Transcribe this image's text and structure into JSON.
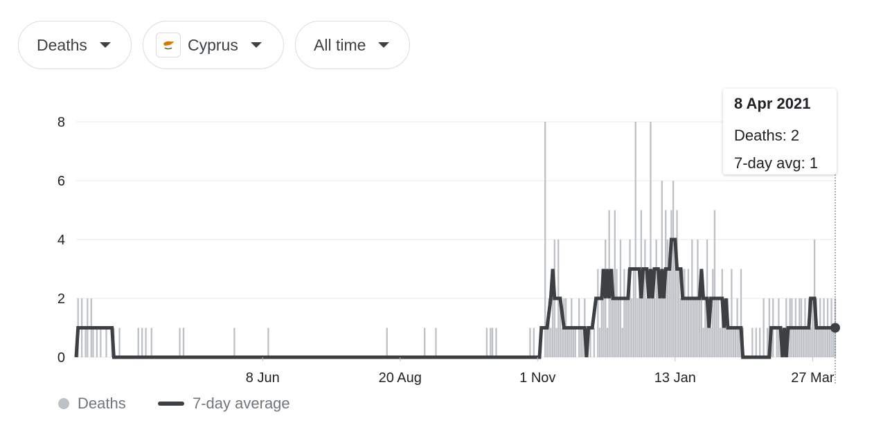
{
  "filters": {
    "metric": "Deaths",
    "country": "Cyprus",
    "range": "All time"
  },
  "tooltip": {
    "date": "8 Apr 2021",
    "deaths": "Deaths: 2",
    "avg": "7-day avg: 1"
  },
  "legend": {
    "deaths": "Deaths",
    "avg": "7-day average"
  },
  "colors": {
    "bars": "#bdc1c6",
    "avg_line": "#3c4043",
    "grid": "#e8eaed",
    "flag_orange": "#d57800",
    "flag_green": "#4e5b31"
  },
  "chart_data": {
    "type": "bar",
    "start_date": "2020-03-01",
    "x_ticks": [
      {
        "label": "8 Jun",
        "date": "2020-06-08"
      },
      {
        "label": "20 Aug",
        "date": "2020-08-20"
      },
      {
        "label": "1 Nov",
        "date": "2020-11-01"
      },
      {
        "label": "13 Jan",
        "date": "2021-01-13"
      },
      {
        "label": "27 Mar",
        "date": "2021-03-27"
      }
    ],
    "y_ticks": [
      0,
      2,
      4,
      6,
      8
    ],
    "ylim": [
      0,
      8
    ],
    "grid": true,
    "highlight": {
      "date": "2021-04-08",
      "deaths": 2,
      "avg": 1
    },
    "series": [
      {
        "name": "Deaths",
        "type": "bar",
        "points": [
          [
            "2020-03-02",
            2
          ],
          [
            "2020-03-04",
            2
          ],
          [
            "2020-03-06",
            1
          ],
          [
            "2020-03-07",
            2
          ],
          [
            "2020-03-09",
            2
          ],
          [
            "2020-03-10",
            1
          ],
          [
            "2020-03-12",
            1
          ],
          [
            "2020-03-14",
            1
          ],
          [
            "2020-03-17",
            1
          ],
          [
            "2020-03-20",
            1
          ],
          [
            "2020-03-21",
            1
          ],
          [
            "2020-03-24",
            1
          ],
          [
            "2020-04-03",
            1
          ],
          [
            "2020-04-05",
            1
          ],
          [
            "2020-04-07",
            1
          ],
          [
            "2020-04-10",
            1
          ],
          [
            "2020-04-25",
            1
          ],
          [
            "2020-04-27",
            1
          ],
          [
            "2020-05-24",
            1
          ],
          [
            "2020-06-11",
            1
          ],
          [
            "2020-08-13",
            1
          ],
          [
            "2020-09-02",
            1
          ],
          [
            "2020-09-08",
            1
          ],
          [
            "2020-10-05",
            1
          ],
          [
            "2020-10-07",
            1
          ],
          [
            "2020-10-08",
            1
          ],
          [
            "2020-10-10",
            1
          ],
          [
            "2020-10-28",
            1
          ],
          [
            "2020-10-30",
            1
          ],
          [
            "2020-11-05",
            8
          ],
          [
            "2020-11-06",
            1
          ],
          [
            "2020-11-07",
            2
          ],
          [
            "2020-11-08",
            1
          ],
          [
            "2020-11-09",
            2
          ],
          [
            "2020-11-10",
            4
          ],
          [
            "2020-11-11",
            1
          ],
          [
            "2020-11-12",
            4
          ],
          [
            "2020-11-13",
            2
          ],
          [
            "2020-11-14",
            1
          ],
          [
            "2020-11-15",
            2
          ],
          [
            "2020-11-16",
            2
          ],
          [
            "2020-11-17",
            1
          ],
          [
            "2020-11-18",
            1
          ],
          [
            "2020-11-19",
            2
          ],
          [
            "2020-11-20",
            1
          ],
          [
            "2020-11-21",
            1
          ],
          [
            "2020-11-23",
            2
          ],
          [
            "2020-11-24",
            1
          ],
          [
            "2020-11-25",
            1
          ],
          [
            "2020-11-26",
            2
          ],
          [
            "2020-11-27",
            1
          ],
          [
            "2020-11-29",
            1
          ],
          [
            "2020-12-01",
            1
          ],
          [
            "2020-12-03",
            3
          ],
          [
            "2020-12-04",
            1
          ],
          [
            "2020-12-05",
            3
          ],
          [
            "2020-12-06",
            2
          ],
          [
            "2020-12-07",
            4
          ],
          [
            "2020-12-08",
            1
          ],
          [
            "2020-12-09",
            5
          ],
          [
            "2020-12-10",
            2
          ],
          [
            "2020-12-11",
            3
          ],
          [
            "2020-12-12",
            5
          ],
          [
            "2020-12-13",
            3
          ],
          [
            "2020-12-14",
            2
          ],
          [
            "2020-12-15",
            4
          ],
          [
            "2020-12-16",
            1
          ],
          [
            "2020-12-17",
            3
          ],
          [
            "2020-12-18",
            2
          ],
          [
            "2020-12-19",
            3
          ],
          [
            "2020-12-20",
            4
          ],
          [
            "2020-12-21",
            2
          ],
          [
            "2020-12-22",
            3
          ],
          [
            "2020-12-23",
            8
          ],
          [
            "2020-12-24",
            2
          ],
          [
            "2020-12-25",
            3
          ],
          [
            "2020-12-26",
            5
          ],
          [
            "2020-12-27",
            3
          ],
          [
            "2020-12-28",
            4
          ],
          [
            "2020-12-29",
            2
          ],
          [
            "2020-12-30",
            3
          ],
          [
            "2020-12-31",
            8
          ],
          [
            "2021-01-01",
            3
          ],
          [
            "2021-01-02",
            2
          ],
          [
            "2021-01-03",
            4
          ],
          [
            "2021-01-04",
            3
          ],
          [
            "2021-01-05",
            2
          ],
          [
            "2021-01-06",
            6
          ],
          [
            "2021-01-07",
            3
          ],
          [
            "2021-01-08",
            5
          ],
          [
            "2021-01-09",
            4
          ],
          [
            "2021-01-10",
            3
          ],
          [
            "2021-01-11",
            5
          ],
          [
            "2021-01-12",
            6
          ],
          [
            "2021-01-13",
            4
          ],
          [
            "2021-01-14",
            5
          ],
          [
            "2021-01-15",
            3
          ],
          [
            "2021-01-16",
            2
          ],
          [
            "2021-01-17",
            3
          ],
          [
            "2021-01-18",
            3
          ],
          [
            "2021-01-19",
            2
          ],
          [
            "2021-01-20",
            3
          ],
          [
            "2021-01-21",
            2
          ],
          [
            "2021-01-22",
            4
          ],
          [
            "2021-01-23",
            2
          ],
          [
            "2021-01-24",
            2
          ],
          [
            "2021-01-25",
            4
          ],
          [
            "2021-01-26",
            2
          ],
          [
            "2021-01-27",
            3
          ],
          [
            "2021-01-28",
            1
          ],
          [
            "2021-01-29",
            2
          ],
          [
            "2021-01-30",
            4
          ],
          [
            "2021-01-31",
            2
          ],
          [
            "2021-02-01",
            1
          ],
          [
            "2021-02-02",
            3
          ],
          [
            "2021-02-03",
            5
          ],
          [
            "2021-02-04",
            2
          ],
          [
            "2021-02-05",
            2
          ],
          [
            "2021-02-06",
            1
          ],
          [
            "2021-02-07",
            3
          ],
          [
            "2021-02-08",
            2
          ],
          [
            "2021-02-09",
            1
          ],
          [
            "2021-02-10",
            2
          ],
          [
            "2021-02-11",
            1
          ],
          [
            "2021-02-12",
            3
          ],
          [
            "2021-02-13",
            1
          ],
          [
            "2021-02-14",
            1
          ],
          [
            "2021-02-15",
            2
          ],
          [
            "2021-02-16",
            1
          ],
          [
            "2021-02-17",
            3
          ],
          [
            "2021-02-18",
            1
          ],
          [
            "2021-02-23",
            1
          ],
          [
            "2021-02-25",
            1
          ],
          [
            "2021-02-27",
            1
          ],
          [
            "2021-03-01",
            2
          ],
          [
            "2021-03-03",
            1
          ],
          [
            "2021-03-04",
            2
          ],
          [
            "2021-03-05",
            1
          ],
          [
            "2021-03-06",
            2
          ],
          [
            "2021-03-08",
            1
          ],
          [
            "2021-03-09",
            2
          ],
          [
            "2021-03-10",
            1
          ],
          [
            "2021-03-12",
            1
          ],
          [
            "2021-03-13",
            2
          ],
          [
            "2021-03-14",
            1
          ],
          [
            "2021-03-15",
            2
          ],
          [
            "2021-03-16",
            2
          ],
          [
            "2021-03-17",
            1
          ],
          [
            "2021-03-18",
            2
          ],
          [
            "2021-03-19",
            1
          ],
          [
            "2021-03-20",
            2
          ],
          [
            "2021-03-21",
            2
          ],
          [
            "2021-03-22",
            1
          ],
          [
            "2021-03-23",
            2
          ],
          [
            "2021-03-24",
            1
          ],
          [
            "2021-03-25",
            2
          ],
          [
            "2021-03-26",
            1
          ],
          [
            "2021-03-27",
            2
          ],
          [
            "2021-03-28",
            4
          ],
          [
            "2021-03-29",
            2
          ],
          [
            "2021-03-30",
            1
          ],
          [
            "2021-03-31",
            2
          ],
          [
            "2021-04-01",
            1
          ],
          [
            "2021-04-02",
            2
          ],
          [
            "2021-04-03",
            1
          ],
          [
            "2021-04-04",
            2
          ],
          [
            "2021-04-05",
            1
          ],
          [
            "2021-04-06",
            2
          ],
          [
            "2021-04-07",
            1
          ],
          [
            "2021-04-08",
            2
          ]
        ]
      },
      {
        "name": "7-day average",
        "type": "line",
        "points": [
          [
            "2020-03-01",
            0
          ],
          [
            "2020-03-02",
            1
          ],
          [
            "2020-03-20",
            1
          ],
          [
            "2020-03-21",
            0
          ],
          [
            "2020-11-02",
            0
          ],
          [
            "2020-11-03",
            1
          ],
          [
            "2020-11-06",
            1
          ],
          [
            "2020-11-08",
            2
          ],
          [
            "2020-11-09",
            3
          ],
          [
            "2020-11-10",
            2
          ],
          [
            "2020-11-13",
            2
          ],
          [
            "2020-11-15",
            1
          ],
          [
            "2020-11-26",
            1
          ],
          [
            "2020-11-27",
            0
          ],
          [
            "2020-11-28",
            1
          ],
          [
            "2020-11-30",
            1
          ],
          [
            "2020-12-02",
            2
          ],
          [
            "2020-12-05",
            2
          ],
          [
            "2020-12-06",
            3
          ],
          [
            "2020-12-07",
            2
          ],
          [
            "2020-12-08",
            3
          ],
          [
            "2020-12-09",
            2
          ],
          [
            "2020-12-10",
            3
          ],
          [
            "2020-12-11",
            2
          ],
          [
            "2020-12-19",
            2
          ],
          [
            "2020-12-20",
            3
          ],
          [
            "2020-12-25",
            3
          ],
          [
            "2020-12-26",
            2
          ],
          [
            "2020-12-27",
            3
          ],
          [
            "2020-12-29",
            3
          ],
          [
            "2020-12-30",
            2
          ],
          [
            "2020-12-31",
            3
          ],
          [
            "2021-01-01",
            2
          ],
          [
            "2021-01-02",
            3
          ],
          [
            "2021-01-04",
            3
          ],
          [
            "2021-01-05",
            2
          ],
          [
            "2021-01-06",
            3
          ],
          [
            "2021-01-07",
            2
          ],
          [
            "2021-01-08",
            3
          ],
          [
            "2021-01-10",
            3
          ],
          [
            "2021-01-11",
            4
          ],
          [
            "2021-01-13",
            4
          ],
          [
            "2021-01-14",
            3
          ],
          [
            "2021-01-16",
            3
          ],
          [
            "2021-01-17",
            2
          ],
          [
            "2021-01-26",
            2
          ],
          [
            "2021-01-27",
            3
          ],
          [
            "2021-01-28",
            2
          ],
          [
            "2021-01-30",
            2
          ],
          [
            "2021-01-31",
            1
          ],
          [
            "2021-02-01",
            2
          ],
          [
            "2021-02-07",
            2
          ],
          [
            "2021-02-08",
            1
          ],
          [
            "2021-02-09",
            2
          ],
          [
            "2021-02-10",
            1
          ],
          [
            "2021-02-17",
            1
          ],
          [
            "2021-02-18",
            0
          ],
          [
            "2021-03-04",
            0
          ],
          [
            "2021-03-05",
            1
          ],
          [
            "2021-03-10",
            1
          ],
          [
            "2021-03-11",
            0
          ],
          [
            "2021-03-12",
            1
          ],
          [
            "2021-03-13",
            0
          ],
          [
            "2021-03-14",
            1
          ],
          [
            "2021-03-25",
            1
          ],
          [
            "2021-03-26",
            2
          ],
          [
            "2021-03-28",
            2
          ],
          [
            "2021-03-29",
            1
          ],
          [
            "2021-04-08",
            1
          ]
        ]
      }
    ]
  }
}
